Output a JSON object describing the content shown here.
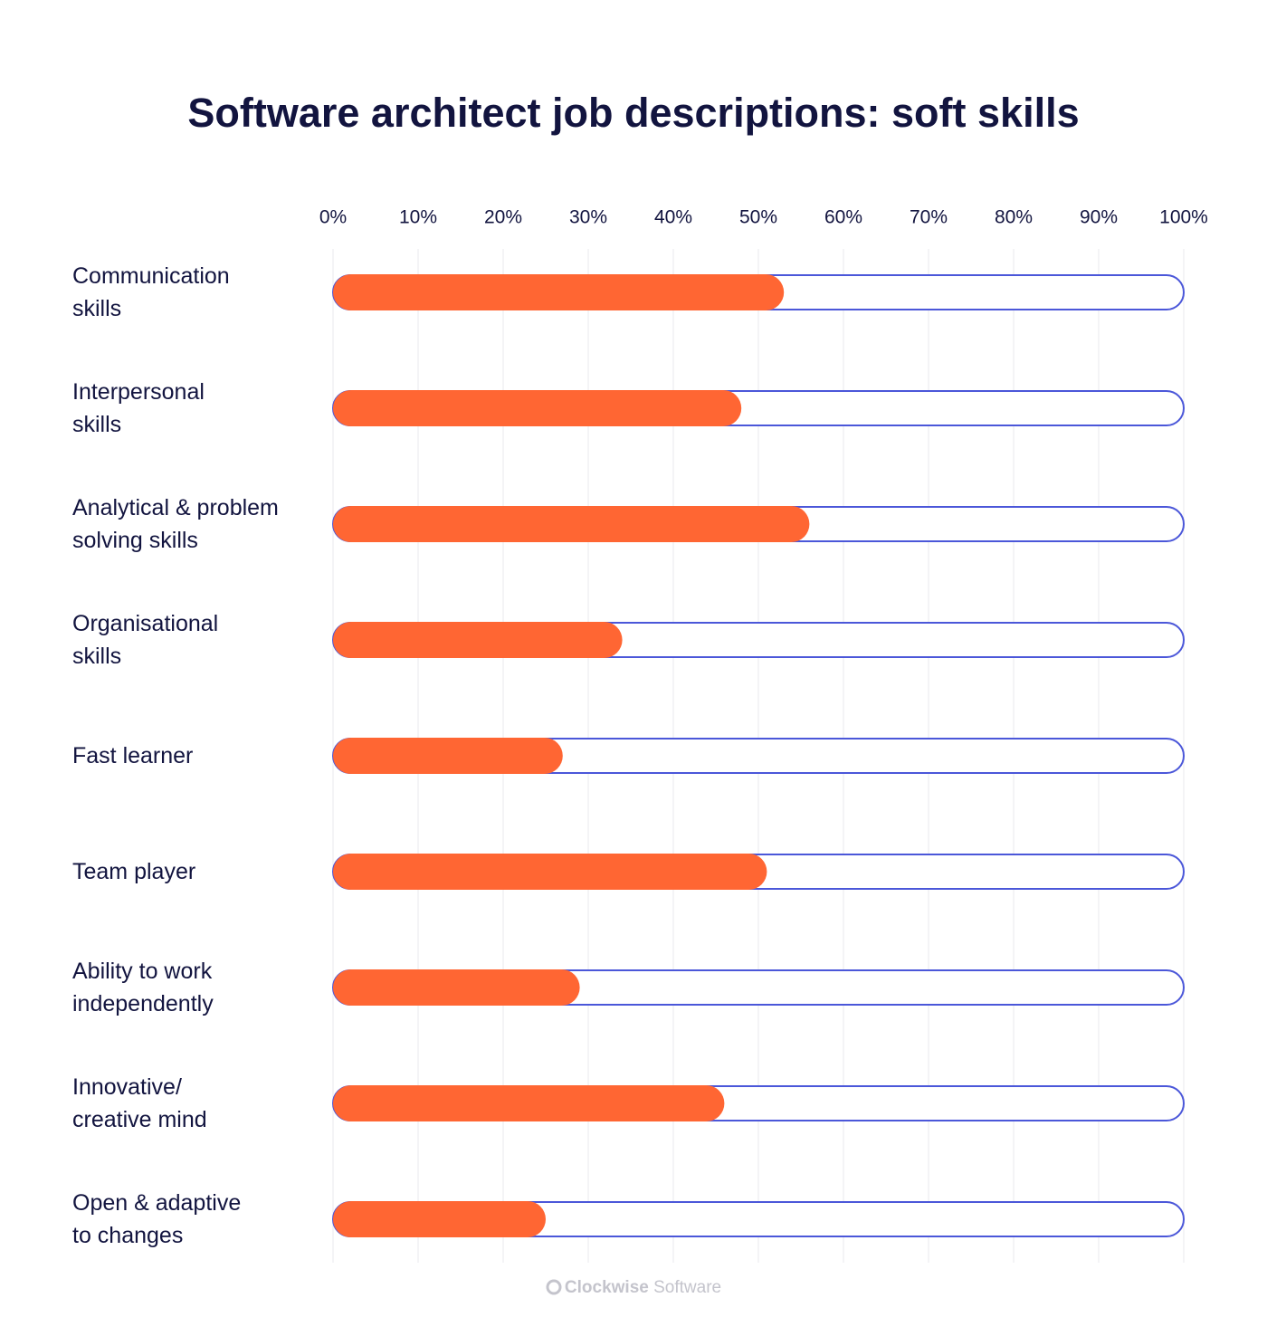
{
  "chart_data": {
    "type": "hbar",
    "title": "Software architect job descriptions: soft skills",
    "categories": [
      "Communication\nskills",
      "Interpersonal\nskills",
      "Analytical & problem\nsolving skills",
      "Organisational\nskills",
      "Fast learner",
      "Team player",
      "Ability to work\nindependently",
      "Innovative/\ncreative mind",
      "Open & adaptive\nto changes"
    ],
    "values": [
      53,
      48,
      56,
      34,
      27,
      51,
      29,
      46,
      25
    ],
    "color": "#ff6633",
    "xlim": [
      0,
      100
    ],
    "xticks": [
      {
        "value": 0,
        "label": "0%"
      },
      {
        "value": 10,
        "label": "10%"
      },
      {
        "value": 20,
        "label": "20%"
      },
      {
        "value": 30,
        "label": "30%"
      },
      {
        "value": 40,
        "label": "40%"
      },
      {
        "value": 50,
        "label": "50%"
      },
      {
        "value": 60,
        "label": "60%"
      },
      {
        "value": 70,
        "label": "70%"
      },
      {
        "value": 80,
        "label": "80%"
      },
      {
        "value": 90,
        "label": "90%"
      },
      {
        "value": 100,
        "label": "100%"
      }
    ],
    "grid": true
  },
  "footer": {
    "brand": "Clockwise",
    "product": "Software"
  }
}
